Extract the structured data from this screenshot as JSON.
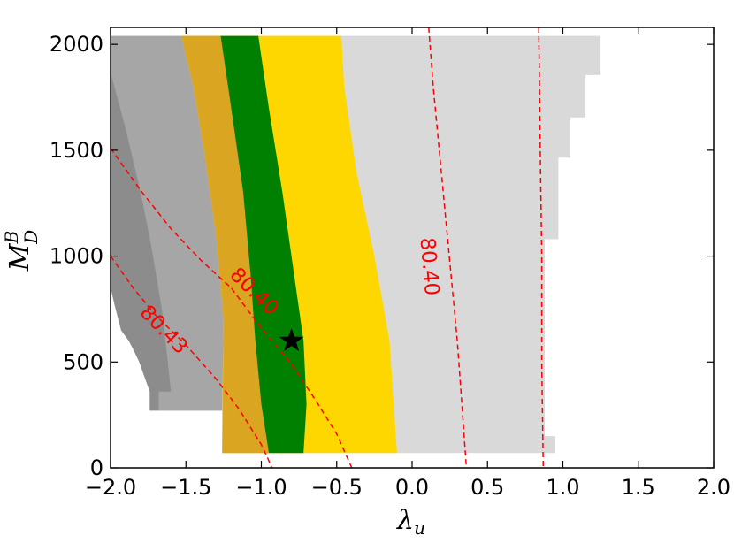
{
  "chart_data": {
    "type": "contour",
    "xlabel": {
      "main": "λ",
      "sub": "u"
    },
    "ylabel": {
      "main": "M",
      "sub": "D",
      "sup": "B"
    },
    "xlim": [
      -2.0,
      2.0
    ],
    "ylim": [
      0,
      2080
    ],
    "x_ticks": [
      -2.0,
      -1.5,
      -1.0,
      -0.5,
      0.0,
      0.5,
      1.0,
      1.5,
      2.0
    ],
    "x_tick_labels": [
      "−2.0",
      "−1.5",
      "−1.0",
      "−0.5",
      "0.0",
      "0.5",
      "1.0",
      "1.5",
      "2.0"
    ],
    "y_ticks": [
      0,
      500,
      1000,
      1500,
      2000
    ],
    "y_tick_labels": [
      "0",
      "500",
      "1000",
      "1500",
      "2000"
    ],
    "grid": false,
    "colors": {
      "region_outer": "#d9d9d9",
      "region_mid": "#a6a6a6",
      "region_dark": "#8c8c8c",
      "band_yellow": "#ffd700",
      "band_orange": "#daa520",
      "band_green": "#008000",
      "contour": "#ff0000",
      "marker": "#000000"
    },
    "regions": {
      "light_gray": [
        [
          -2.0,
          2040
        ],
        [
          -2.0,
          850
        ],
        [
          -1.97,
          850
        ],
        [
          -1.97,
          760
        ],
        [
          -1.93,
          760
        ],
        [
          -1.93,
          650
        ],
        [
          -1.88,
          650
        ],
        [
          -1.88,
          600
        ],
        [
          -1.85,
          600
        ],
        [
          -1.85,
          560
        ],
        [
          -1.81,
          560
        ],
        [
          -1.81,
          500
        ],
        [
          -1.78,
          500
        ],
        [
          -1.78,
          440
        ],
        [
          -1.74,
          440
        ],
        [
          -1.74,
          360
        ],
        [
          -1.68,
          360
        ],
        [
          -1.68,
          270
        ],
        [
          -1.26,
          270
        ],
        [
          -1.26,
          70
        ],
        [
          0.95,
          70
        ],
        [
          0.95,
          150
        ],
        [
          0.88,
          150
        ],
        [
          0.88,
          1080
        ],
        [
          0.97,
          1080
        ],
        [
          0.97,
          1465
        ],
        [
          1.05,
          1465
        ],
        [
          1.05,
          1655
        ],
        [
          1.15,
          1655
        ],
        [
          1.15,
          1855
        ],
        [
          1.25,
          1855
        ],
        [
          1.25,
          2040
        ]
      ],
      "mid_gray": [
        [
          -2.0,
          2040
        ],
        [
          -2.0,
          850
        ],
        [
          -1.97,
          850
        ],
        [
          -1.97,
          760
        ],
        [
          -1.93,
          760
        ],
        [
          -1.93,
          650
        ],
        [
          -1.88,
          650
        ],
        [
          -1.88,
          600
        ],
        [
          -1.85,
          600
        ],
        [
          -1.85,
          560
        ],
        [
          -1.81,
          560
        ],
        [
          -1.81,
          500
        ],
        [
          -1.78,
          500
        ],
        [
          -1.78,
          440
        ],
        [
          -1.74,
          440
        ],
        [
          -1.74,
          360
        ],
        [
          -1.68,
          360
        ],
        [
          -1.68,
          270
        ],
        [
          -1.26,
          270
        ],
        [
          -1.25,
          700
        ],
        [
          -1.3,
          1100
        ],
        [
          -1.38,
          1500
        ],
        [
          -1.45,
          1800
        ],
        [
          -1.53,
          2040
        ]
      ],
      "dark_gray": [
        [
          -2.0,
          1870
        ],
        [
          -1.9,
          1600
        ],
        [
          -1.8,
          1300
        ],
        [
          -1.73,
          1050
        ],
        [
          -1.66,
          750
        ],
        [
          -1.62,
          500
        ],
        [
          -1.6,
          360
        ],
        [
          -1.68,
          360
        ],
        [
          -1.68,
          270
        ],
        [
          -1.74,
          270
        ],
        [
          -1.74,
          360
        ],
        [
          -1.78,
          440
        ],
        [
          -1.81,
          500
        ],
        [
          -1.85,
          560
        ],
        [
          -1.88,
          600
        ],
        [
          -1.93,
          650
        ],
        [
          -1.97,
          760
        ],
        [
          -2.0,
          850
        ]
      ],
      "yellow_band": [
        [
          -1.53,
          2040
        ],
        [
          -1.45,
          1800
        ],
        [
          -1.38,
          1500
        ],
        [
          -1.3,
          1100
        ],
        [
          -1.25,
          700
        ],
        [
          -1.26,
          70
        ],
        [
          -0.1,
          70
        ],
        [
          -0.15,
          600
        ],
        [
          -0.25,
          1000
        ],
        [
          -0.37,
          1400
        ],
        [
          -0.45,
          1800
        ],
        [
          -0.47,
          2040
        ]
      ],
      "orange_band": [
        [
          -1.53,
          2040
        ],
        [
          -1.45,
          1800
        ],
        [
          -1.38,
          1500
        ],
        [
          -1.3,
          1100
        ],
        [
          -1.25,
          700
        ],
        [
          -1.26,
          70
        ],
        [
          -0.95,
          70
        ],
        [
          -1.0,
          300
        ],
        [
          -1.04,
          600
        ],
        [
          -1.07,
          900
        ],
        [
          -1.12,
          1300
        ],
        [
          -1.2,
          1700
        ],
        [
          -1.27,
          2040
        ]
      ],
      "green_band": [
        [
          -1.27,
          2040
        ],
        [
          -1.2,
          1700
        ],
        [
          -1.12,
          1300
        ],
        [
          -1.07,
          900
        ],
        [
          -1.04,
          600
        ],
        [
          -1.0,
          300
        ],
        [
          -0.95,
          70
        ],
        [
          -0.72,
          70
        ],
        [
          -0.7,
          300
        ],
        [
          -0.72,
          600
        ],
        [
          -0.78,
          900
        ],
        [
          -0.86,
          1300
        ],
        [
          -0.95,
          1700
        ],
        [
          -1.02,
          2040
        ]
      ]
    },
    "contours": [
      {
        "label": "80.43",
        "points": [
          [
            -2.0,
            1000
          ],
          [
            -1.85,
            850
          ],
          [
            -1.7,
            720
          ],
          [
            -1.5,
            580
          ],
          [
            -1.3,
            420
          ],
          [
            -1.15,
            280
          ],
          [
            -1.0,
            110
          ],
          [
            -0.96,
            50
          ],
          [
            -0.93,
            0
          ]
        ],
        "label_at": [
          -1.65,
          650
        ],
        "label_angle": 46
      },
      {
        "label": "80.40",
        "points": [
          [
            -2.0,
            1510
          ],
          [
            -1.8,
            1310
          ],
          [
            -1.6,
            1130
          ],
          [
            -1.4,
            980
          ],
          [
            -1.2,
            850
          ],
          [
            -1.0,
            660
          ],
          [
            -0.8,
            490
          ],
          [
            -0.65,
            330
          ],
          [
            -0.5,
            160
          ],
          [
            -0.4,
            0
          ]
        ],
        "label_at": [
          -1.05,
          830
        ],
        "label_angle": 44
      },
      {
        "label": "80.40",
        "points": [
          [
            0.11,
            2080
          ],
          [
            0.14,
            1800
          ],
          [
            0.18,
            1500
          ],
          [
            0.22,
            1200
          ],
          [
            0.26,
            900
          ],
          [
            0.3,
            600
          ],
          [
            0.33,
            300
          ],
          [
            0.36,
            0
          ]
        ],
        "label_at": [
          0.11,
          950
        ],
        "label_angle": 85
      },
      {
        "label": "",
        "points": [
          [
            0.84,
            2080
          ],
          [
            0.85,
            1500
          ],
          [
            0.86,
            1000
          ],
          [
            0.86,
            500
          ],
          [
            0.87,
            0
          ]
        ]
      }
    ],
    "marker": {
      "x": -0.8,
      "y": 600,
      "symbol": "star"
    }
  }
}
